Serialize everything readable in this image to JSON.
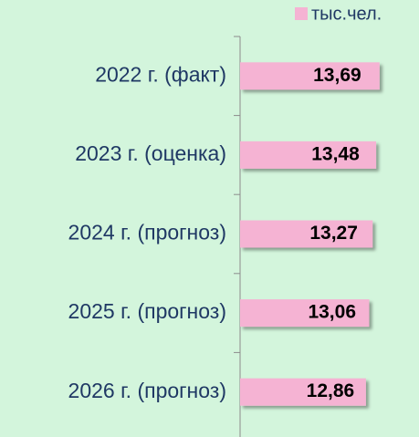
{
  "chart_data": {
    "type": "hbar",
    "categories": [
      "2022 г. (факт)",
      "2023 г. (оценка)",
      "2024 г. (прогноз)",
      "2025 г. (прогноз)",
      "2026 г. (прогноз)"
    ],
    "series": [
      {
        "name": "тыс.чел.",
        "color": "#f5b3d3",
        "values": [
          13.69,
          13.48,
          13.27,
          13.06,
          12.86
        ],
        "value_labels": [
          "13,69",
          "13,48",
          "13,27",
          "13,06",
          "12,86"
        ]
      }
    ],
    "xlim": [
      5.2,
      14.2
    ],
    "legend": "top-right"
  }
}
